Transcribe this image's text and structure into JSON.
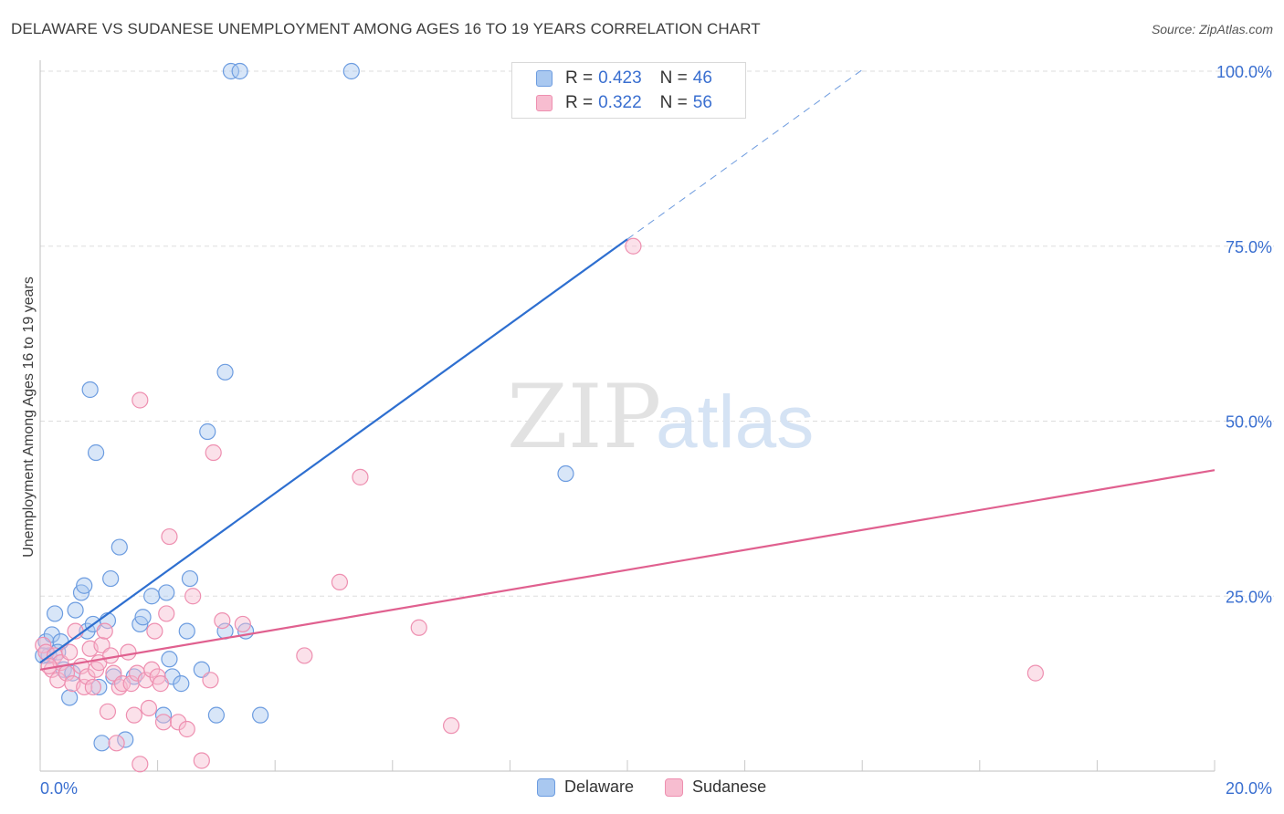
{
  "title": "DELAWARE VS SUDANESE UNEMPLOYMENT AMONG AGES 16 TO 19 YEARS CORRELATION CHART",
  "source": "Source: ZipAtlas.com",
  "watermark": {
    "zip": "ZIP",
    "atlas": "atlas"
  },
  "legend_top": [
    {
      "r_label": "R =",
      "r_value": "0.423",
      "n_label": "N =",
      "n_value": "46"
    },
    {
      "r_label": "R =",
      "r_value": "0.322",
      "n_label": "N =",
      "n_value": "56"
    }
  ],
  "legend_bottom": [
    {
      "name": "Delaware"
    },
    {
      "name": "Sudanese"
    }
  ],
  "colors": {
    "delaware_fill": "#a9c8f0",
    "delaware_stroke": "#6c9ce0",
    "delaware_line": "#2e6fd0",
    "sudanese_fill": "#f7bdd0",
    "sudanese_stroke": "#ee8fb0",
    "sudanese_line": "#e0608f",
    "tick_label": "#3a6fd0",
    "grid": "#dddddd"
  },
  "chart_data": {
    "type": "scatter",
    "title": "DELAWARE VS SUDANESE UNEMPLOYMENT AMONG AGES 16 TO 19 YEARS CORRELATION CHART",
    "xlabel": "",
    "ylabel": "Unemployment Among Ages 16 to 19 years",
    "xlim": [
      0,
      20
    ],
    "ylim": [
      0,
      100
    ],
    "x_tick_labels": [
      "0.0%",
      "20.0%"
    ],
    "y_ticks": [
      25,
      50,
      75,
      100
    ],
    "y_tick_labels": [
      "25.0%",
      "50.0%",
      "75.0%",
      "100.0%"
    ],
    "grid": true,
    "legend_position": "top-center",
    "series": [
      {
        "name": "Delaware",
        "R": 0.423,
        "N": 46,
        "trend": {
          "x0": 0.0,
          "y0": 15.5,
          "x1": 10.0,
          "y1": 76.0,
          "dash_to_x": 14.0
        },
        "points": [
          [
            0.1,
            18.5
          ],
          [
            0.15,
            16.5
          ],
          [
            0.2,
            19.5
          ],
          [
            0.25,
            22.5
          ],
          [
            0.35,
            18.5
          ],
          [
            0.4,
            14.5
          ],
          [
            0.5,
            10.5
          ],
          [
            0.6,
            23.0
          ],
          [
            0.7,
            25.5
          ],
          [
            0.75,
            26.5
          ],
          [
            0.8,
            20.0
          ],
          [
            0.85,
            54.5
          ],
          [
            0.9,
            21.0
          ],
          [
            0.95,
            45.5
          ],
          [
            1.05,
            4.0
          ],
          [
            1.15,
            21.5
          ],
          [
            1.2,
            27.5
          ],
          [
            1.25,
            13.5
          ],
          [
            1.35,
            32.0
          ],
          [
            1.45,
            4.5
          ],
          [
            1.6,
            13.5
          ],
          [
            1.7,
            21.0
          ],
          [
            1.75,
            22.0
          ],
          [
            1.9,
            25.0
          ],
          [
            2.1,
            8.0
          ],
          [
            2.15,
            25.5
          ],
          [
            2.2,
            16.0
          ],
          [
            2.25,
            13.5
          ],
          [
            2.4,
            12.5
          ],
          [
            2.5,
            20.0
          ],
          [
            2.55,
            27.5
          ],
          [
            2.75,
            14.5
          ],
          [
            2.85,
            48.5
          ],
          [
            3.0,
            8.0
          ],
          [
            3.15,
            20.0
          ],
          [
            3.15,
            57.0
          ],
          [
            3.25,
            100.0
          ],
          [
            3.4,
            100.0
          ],
          [
            3.5,
            20.0
          ],
          [
            3.75,
            8.0
          ],
          [
            5.3,
            100.0
          ],
          [
            8.95,
            42.5
          ],
          [
            0.05,
            16.5
          ],
          [
            0.3,
            17.0
          ],
          [
            1.0,
            12.0
          ],
          [
            0.55,
            14.0
          ]
        ]
      },
      {
        "name": "Sudanese",
        "R": 0.322,
        "N": 56,
        "trend": {
          "x0": 0.0,
          "y0": 14.5,
          "x1": 20.0,
          "y1": 43.0
        },
        "points": [
          [
            0.05,
            18.0
          ],
          [
            0.1,
            17.0
          ],
          [
            0.2,
            14.5
          ],
          [
            0.25,
            16.5
          ],
          [
            0.3,
            13.0
          ],
          [
            0.35,
            15.5
          ],
          [
            0.45,
            14.0
          ],
          [
            0.5,
            17.0
          ],
          [
            0.55,
            12.5
          ],
          [
            0.6,
            20.0
          ],
          [
            0.7,
            15.0
          ],
          [
            0.75,
            12.0
          ],
          [
            0.8,
            13.5
          ],
          [
            0.85,
            17.5
          ],
          [
            0.9,
            12.0
          ],
          [
            0.95,
            14.5
          ],
          [
            1.0,
            15.5
          ],
          [
            1.05,
            18.0
          ],
          [
            1.1,
            20.0
          ],
          [
            1.15,
            8.5
          ],
          [
            1.2,
            16.5
          ],
          [
            1.25,
            14.0
          ],
          [
            1.3,
            4.0
          ],
          [
            1.35,
            12.0
          ],
          [
            1.4,
            12.5
          ],
          [
            1.5,
            17.0
          ],
          [
            1.55,
            12.5
          ],
          [
            1.6,
            8.0
          ],
          [
            1.65,
            14.0
          ],
          [
            1.7,
            1.0
          ],
          [
            1.7,
            53.0
          ],
          [
            1.8,
            13.0
          ],
          [
            1.85,
            9.0
          ],
          [
            1.9,
            14.5
          ],
          [
            1.95,
            20.0
          ],
          [
            2.0,
            13.5
          ],
          [
            2.05,
            12.5
          ],
          [
            2.1,
            7.0
          ],
          [
            2.15,
            22.5
          ],
          [
            2.2,
            33.5
          ],
          [
            2.35,
            7.0
          ],
          [
            2.5,
            6.0
          ],
          [
            2.6,
            25.0
          ],
          [
            2.75,
            1.5
          ],
          [
            2.9,
            13.0
          ],
          [
            2.95,
            45.5
          ],
          [
            3.1,
            21.5
          ],
          [
            3.45,
            21.0
          ],
          [
            4.5,
            16.5
          ],
          [
            5.1,
            27.0
          ],
          [
            5.45,
            42.0
          ],
          [
            6.45,
            20.5
          ],
          [
            7.0,
            6.5
          ],
          [
            10.1,
            75.0
          ],
          [
            16.95,
            14.0
          ],
          [
            0.15,
            15.0
          ]
        ]
      }
    ]
  }
}
